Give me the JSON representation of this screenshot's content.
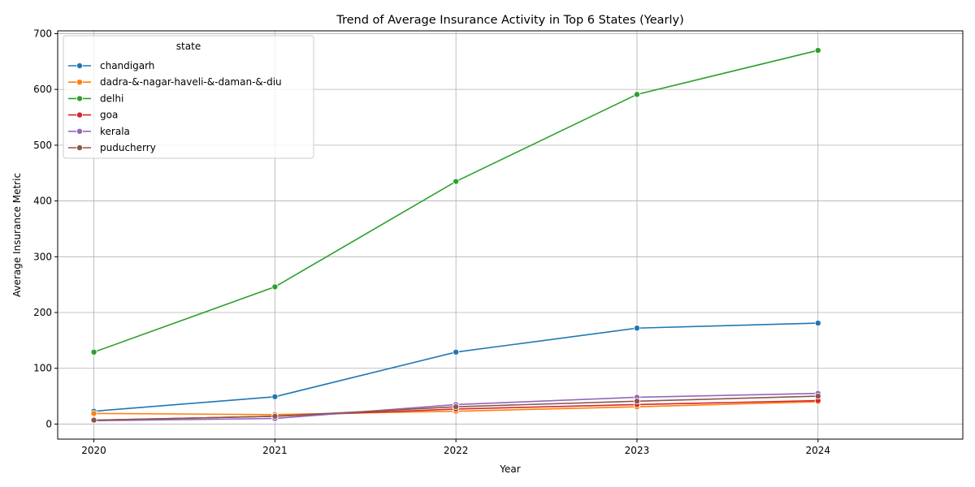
{
  "chart_data": {
    "type": "line",
    "title": "Trend of Average Insurance Activity in Top 6 States (Yearly)",
    "xlabel": "Year",
    "ylabel": "Average Insurance Metric",
    "x": [
      2020,
      2021,
      2022,
      2023,
      2024
    ],
    "xlim": [
      2019.8,
      2024.8
    ],
    "ylim": [
      -27,
      705
    ],
    "yticks": [
      0,
      100,
      200,
      300,
      400,
      500,
      600,
      700
    ],
    "grid": true,
    "legend": {
      "title": "state",
      "placement": "top-left"
    },
    "series": [
      {
        "name": "chandigarh",
        "color": "#1f77b4",
        "values": [
          23,
          49,
          129,
          172,
          181
        ]
      },
      {
        "name": "dadra-&-nagar-haveli-&-daman-&-diu",
        "color": "#ff7f0e",
        "values": [
          19,
          17,
          23,
          31,
          40
        ]
      },
      {
        "name": "delhi",
        "color": "#2ca02c",
        "values": [
          129,
          246,
          435,
          591,
          670
        ]
      },
      {
        "name": "goa",
        "color": "#d62728",
        "values": [
          7,
          14,
          27,
          35,
          42
        ]
      },
      {
        "name": "kerala",
        "color": "#9467bd",
        "values": [
          6,
          10,
          35,
          48,
          55
        ]
      },
      {
        "name": "puducherry",
        "color": "#8c564b",
        "values": [
          7,
          14,
          31,
          41,
          50
        ]
      }
    ]
  }
}
